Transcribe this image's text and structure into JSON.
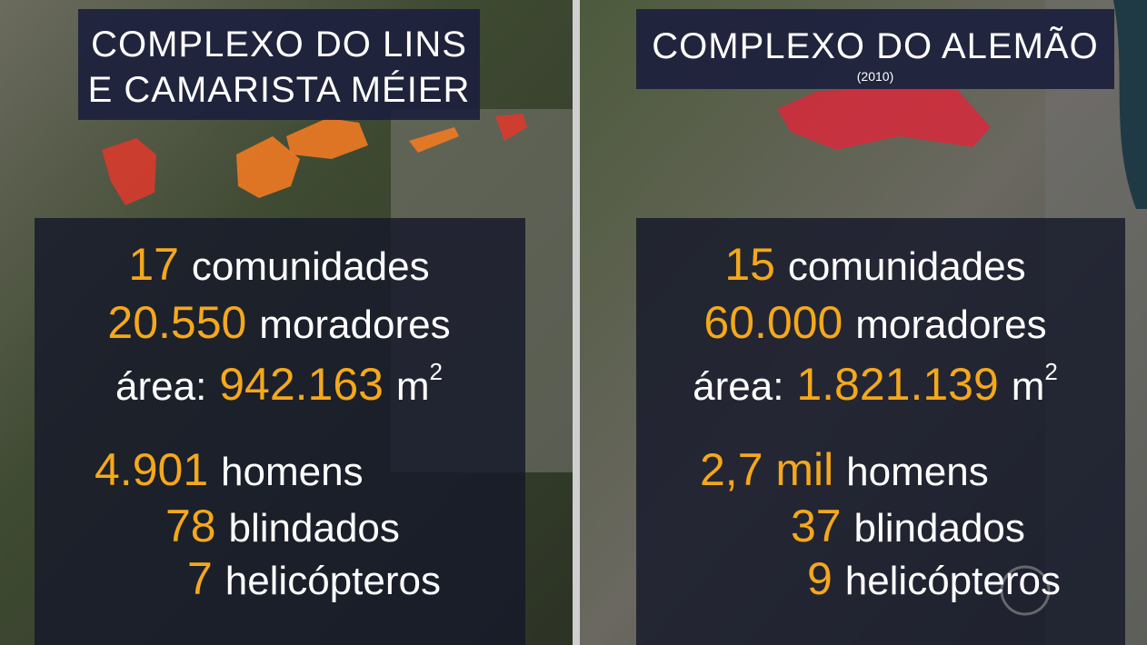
{
  "panels": [
    {
      "title": [
        "COMPLEXO DO LINS",
        "E CAMARISTA MÉIER"
      ],
      "rows": [
        {
          "number": "17",
          "label": "comunidades"
        },
        {
          "number": "20.550",
          "label": "moradores"
        },
        {
          "prefix": "área:",
          "number": "942.163",
          "label": "m",
          "sup": "2"
        },
        {
          "number": "4.901",
          "label": "homens"
        },
        {
          "number": "78",
          "label": "blindados"
        },
        {
          "number": "7",
          "label": "helicópteros"
        }
      ]
    },
    {
      "title": [
        "COMPLEXO DO ALEMÃO"
      ],
      "subtitle": "(2010)",
      "rows": [
        {
          "number": "15",
          "label": "comunidades"
        },
        {
          "number": "60.000",
          "label": "moradores"
        },
        {
          "prefix": "área:",
          "number": "1.821.139",
          "label": "m",
          "sup": "2"
        },
        {
          "number": "2,7 mil",
          "label": "homens"
        },
        {
          "number": "37",
          "label": "blindados"
        },
        {
          "number": "9",
          "label": "helicópteros"
        }
      ]
    }
  ]
}
